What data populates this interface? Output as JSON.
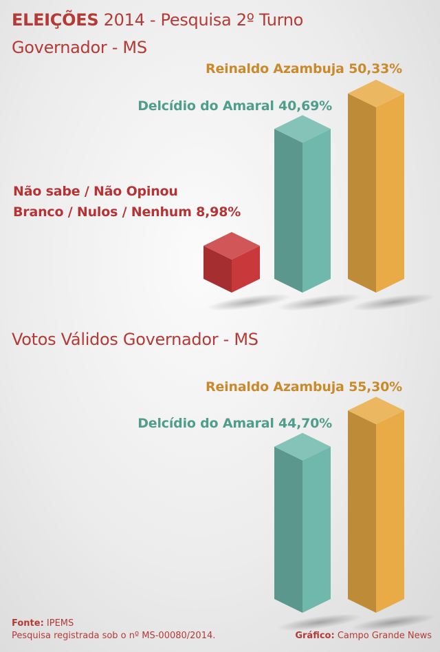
{
  "header": {
    "title_bold": "ELEIÇÕES",
    "title_rest": "2014 - Pesquisa 2º Turno",
    "subtitle": "Governador - MS"
  },
  "section2_title": "Votos Válidos Governador - MS",
  "colors": {
    "orange": "#e8ab45",
    "teal": "#6fb8ab",
    "red": "#c9383b"
  },
  "chart_data": [
    {
      "type": "bar",
      "title": "Governador - MS",
      "categories": [
        "Não sabe / Não Opinou / Branco / Nulos / Nenhum",
        "Delcídio do Amaral",
        "Reinaldo Azambuja"
      ],
      "values": [
        8.98,
        40.69,
        50.33
      ],
      "labels": [
        {
          "line1": "Não sabe / Não Opinou",
          "line2": "Branco / Nulos / Nenhum  8,98%"
        },
        {
          "line1": "Delcídio do Amaral 40,69%"
        },
        {
          "line1": "Reinaldo Azambuja 50,33%"
        }
      ],
      "colors": [
        "#c9383b",
        "#6fb8ab",
        "#e8ab45"
      ]
    },
    {
      "type": "bar",
      "title": "Votos Válidos Governador - MS",
      "categories": [
        "Delcídio do Amaral",
        "Reinaldo Azambuja"
      ],
      "values": [
        44.7,
        55.3
      ],
      "labels": [
        {
          "line1": "Delcídio do Amaral 44,70%"
        },
        {
          "line1": "Reinaldo Azambuja 55,30%"
        }
      ],
      "colors": [
        "#6fb8ab",
        "#e8ab45"
      ]
    }
  ],
  "footer": {
    "source_label": "Fonte:",
    "source_value": "IPEMS",
    "registration": "Pesquisa registrada sob o nº MS-00080/2014.",
    "graphic_label": "Gráfico:",
    "graphic_value": "Campo Grande News"
  }
}
